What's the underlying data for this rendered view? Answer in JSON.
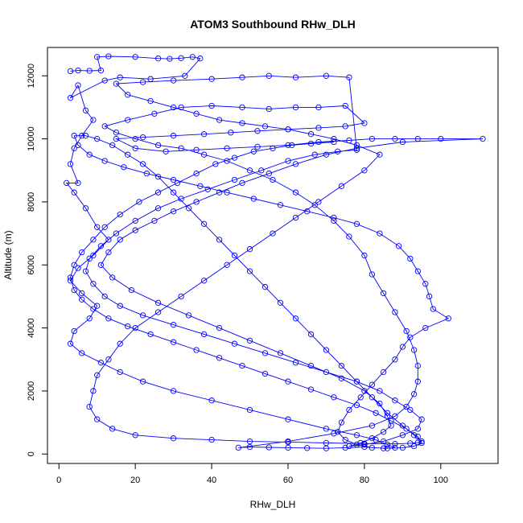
{
  "chart_data": {
    "type": "line",
    "title": "ATOM3 Southbound RHw_DLH",
    "xlabel": "RHw_DLH",
    "ylabel": "Altitude (m)",
    "xlim": [
      -3,
      115
    ],
    "ylim": [
      -300,
      12900
    ],
    "xticks": [
      0,
      20,
      40,
      60,
      80,
      100
    ],
    "yticks": [
      0,
      2000,
      4000,
      6000,
      8000,
      10000,
      12000
    ],
    "grid": false,
    "legend": "none",
    "series": [
      {
        "color": "#0000ff",
        "marker": "open-circle",
        "points": [
          [
            3,
            12150
          ],
          [
            5,
            12170
          ],
          [
            8,
            12160
          ],
          [
            11,
            12170
          ],
          [
            10,
            12600
          ],
          [
            13,
            12620
          ],
          [
            20,
            12600
          ],
          [
            26,
            12550
          ],
          [
            29,
            12540
          ],
          [
            32,
            12560
          ],
          [
            35,
            12600
          ],
          [
            37,
            12550
          ],
          [
            33,
            12000
          ],
          [
            24,
            11900
          ],
          [
            16,
            11950
          ],
          [
            12,
            11850
          ],
          [
            3,
            11300
          ],
          [
            5,
            11700
          ],
          [
            7,
            10900
          ],
          [
            9,
            10600
          ],
          [
            6,
            10100
          ],
          [
            4,
            9700
          ],
          [
            3,
            9200
          ],
          [
            5,
            8600
          ],
          [
            2,
            8600
          ],
          [
            4,
            8300
          ],
          [
            7,
            7800
          ],
          [
            10,
            7200
          ],
          [
            13,
            6800
          ],
          [
            9,
            6300
          ],
          [
            5,
            5900
          ],
          [
            3,
            5500
          ],
          [
            6,
            5100
          ],
          [
            10,
            4700
          ],
          [
            8,
            4300
          ],
          [
            4,
            3900
          ],
          [
            3,
            3500
          ],
          [
            6,
            3200
          ],
          [
            11,
            2900
          ],
          [
            16,
            2600
          ],
          [
            22,
            2300
          ],
          [
            30,
            2000
          ],
          [
            40,
            1700
          ],
          [
            50,
            1400
          ],
          [
            60,
            1100
          ],
          [
            70,
            800
          ],
          [
            78,
            600
          ],
          [
            83,
            450
          ],
          [
            86,
            300
          ],
          [
            88,
            200
          ],
          [
            85,
            180
          ],
          [
            80,
            220
          ],
          [
            75,
            200
          ],
          [
            70,
            180
          ],
          [
            65,
            190
          ],
          [
            60,
            200
          ],
          [
            55,
            210
          ],
          [
            50,
            220
          ],
          [
            47,
            200
          ],
          [
            60,
            400
          ],
          [
            72,
            650
          ],
          [
            82,
            900
          ],
          [
            88,
            1200
          ],
          [
            91,
            1500
          ],
          [
            93,
            1900
          ],
          [
            94,
            2300
          ],
          [
            94,
            2800
          ],
          [
            93,
            3300
          ],
          [
            91,
            3900
          ],
          [
            88,
            4500
          ],
          [
            85,
            5100
          ],
          [
            82,
            5700
          ],
          [
            80,
            6300
          ],
          [
            76,
            6900
          ],
          [
            72,
            7400
          ],
          [
            67,
            7900
          ],
          [
            62,
            8300
          ],
          [
            56,
            8700
          ],
          [
            50,
            9000
          ],
          [
            44,
            9300
          ],
          [
            38,
            9500
          ],
          [
            32,
            9700
          ],
          [
            26,
            9800
          ],
          [
            20,
            10000
          ],
          [
            15,
            10200
          ],
          [
            12,
            10400
          ],
          [
            18,
            10600
          ],
          [
            25,
            10800
          ],
          [
            32,
            11000
          ],
          [
            40,
            11050
          ],
          [
            48,
            11000
          ],
          [
            55,
            10950
          ],
          [
            62,
            11000
          ],
          [
            68,
            11000
          ],
          [
            75,
            11050
          ],
          [
            80,
            10500
          ],
          [
            75,
            10400
          ],
          [
            68,
            10350
          ],
          [
            60,
            10300
          ],
          [
            52,
            10250
          ],
          [
            45,
            10200
          ],
          [
            38,
            10150
          ],
          [
            30,
            10100
          ],
          [
            22,
            10050
          ],
          [
            15,
            10000
          ],
          [
            20,
            9700
          ],
          [
            28,
            9600
          ],
          [
            36,
            9650
          ],
          [
            44,
            9700
          ],
          [
            52,
            9750
          ],
          [
            60,
            9800
          ],
          [
            68,
            9900
          ],
          [
            76,
            9950
          ],
          [
            82,
            10000
          ],
          [
            88,
            10000
          ],
          [
            94,
            10000
          ],
          [
            100,
            10000
          ],
          [
            111,
            10000
          ],
          [
            90,
            9900
          ],
          [
            78,
            9700
          ],
          [
            70,
            9500
          ],
          [
            62,
            9200
          ],
          [
            55,
            8900
          ],
          [
            48,
            8600
          ],
          [
            42,
            8300
          ],
          [
            36,
            8000
          ],
          [
            30,
            7700
          ],
          [
            25,
            7400
          ],
          [
            20,
            7100
          ],
          [
            16,
            6800
          ],
          [
            13,
            6400
          ],
          [
            11,
            6000
          ],
          [
            14,
            5600
          ],
          [
            19,
            5200
          ],
          [
            26,
            4800
          ],
          [
            34,
            4400
          ],
          [
            42,
            4000
          ],
          [
            50,
            3600
          ],
          [
            58,
            3200
          ],
          [
            66,
            2800
          ],
          [
            74,
            2400
          ],
          [
            80,
            2000
          ],
          [
            84,
            1600
          ],
          [
            86,
            1200
          ],
          [
            87,
            900
          ],
          [
            85,
            700
          ],
          [
            82,
            500
          ],
          [
            79,
            350
          ],
          [
            76,
            250
          ],
          [
            80,
            300
          ],
          [
            85,
            400
          ],
          [
            90,
            600
          ],
          [
            94,
            800
          ],
          [
            95,
            1100
          ],
          [
            92,
            1400
          ],
          [
            88,
            1700
          ],
          [
            84,
            2000
          ],
          [
            78,
            2300
          ],
          [
            70,
            2600
          ],
          [
            62,
            2900
          ],
          [
            54,
            3200
          ],
          [
            46,
            3500
          ],
          [
            38,
            3800
          ],
          [
            30,
            4100
          ],
          [
            22,
            4400
          ],
          [
            16,
            4700
          ],
          [
            12,
            5000
          ],
          [
            9,
            5400
          ],
          [
            7,
            5800
          ],
          [
            8,
            6200
          ],
          [
            11,
            6600
          ],
          [
            15,
            7000
          ],
          [
            20,
            7400
          ],
          [
            26,
            7800
          ],
          [
            32,
            8100
          ],
          [
            39,
            8400
          ],
          [
            46,
            8700
          ],
          [
            53,
            9000
          ],
          [
            60,
            9300
          ],
          [
            67,
            9500
          ],
          [
            73,
            9600
          ],
          [
            78,
            9650
          ],
          [
            76,
            11950
          ],
          [
            70,
            12000
          ],
          [
            62,
            11950
          ],
          [
            55,
            12000
          ],
          [
            48,
            11950
          ],
          [
            40,
            11900
          ],
          [
            30,
            11850
          ],
          [
            22,
            11800
          ],
          [
            15,
            11750
          ],
          [
            18,
            11400
          ],
          [
            24,
            11200
          ],
          [
            30,
            11000
          ],
          [
            36,
            10800
          ],
          [
            42,
            10600
          ],
          [
            48,
            10500
          ],
          [
            54,
            10400
          ],
          [
            60,
            10300
          ],
          [
            66,
            10150
          ],
          [
            72,
            10000
          ],
          [
            78,
            9800
          ],
          [
            84,
            9500
          ],
          [
            80,
            9000
          ],
          [
            74,
            8500
          ],
          [
            68,
            8000
          ],
          [
            62,
            7500
          ],
          [
            56,
            7000
          ],
          [
            50,
            6500
          ],
          [
            44,
            6000
          ],
          [
            38,
            5500
          ],
          [
            32,
            5000
          ],
          [
            26,
            4500
          ],
          [
            20,
            4000
          ],
          [
            16,
            3500
          ],
          [
            13,
            3000
          ],
          [
            10,
            2500
          ],
          [
            9,
            2000
          ],
          [
            8,
            1500
          ],
          [
            10,
            1100
          ],
          [
            14,
            800
          ],
          [
            20,
            600
          ],
          [
            30,
            500
          ],
          [
            40,
            450
          ],
          [
            50,
            400
          ],
          [
            60,
            380
          ],
          [
            70,
            350
          ],
          [
            80,
            330
          ],
          [
            88,
            320
          ],
          [
            92,
            340
          ],
          [
            94,
            360
          ],
          [
            95,
            400
          ],
          [
            93,
            600
          ],
          [
            90,
            900
          ],
          [
            86,
            1300
          ],
          [
            82,
            1800
          ],
          [
            78,
            2300
          ],
          [
            74,
            2800
          ],
          [
            70,
            3300
          ],
          [
            66,
            3800
          ],
          [
            62,
            4300
          ],
          [
            58,
            4800
          ],
          [
            54,
            5300
          ],
          [
            50,
            5800
          ],
          [
            46,
            6300
          ],
          [
            42,
            6800
          ],
          [
            38,
            7300
          ],
          [
            34,
            7800
          ],
          [
            30,
            8300
          ],
          [
            26,
            8800
          ],
          [
            22,
            9200
          ],
          [
            18,
            9500
          ],
          [
            14,
            9800
          ],
          [
            10,
            10000
          ],
          [
            7,
            10100
          ],
          [
            4,
            10100
          ],
          [
            5,
            9800
          ],
          [
            8,
            9500
          ],
          [
            12,
            9300
          ],
          [
            17,
            9100
          ],
          [
            23,
            8900
          ],
          [
            30,
            8700
          ],
          [
            37,
            8500
          ],
          [
            44,
            8300
          ],
          [
            51,
            8100
          ],
          [
            58,
            7900
          ],
          [
            65,
            7700
          ],
          [
            72,
            7500
          ],
          [
            78,
            7300
          ],
          [
            84,
            7000
          ],
          [
            89,
            6600
          ],
          [
            92,
            6200
          ],
          [
            94,
            5800
          ],
          [
            96,
            5400
          ],
          [
            97,
            5000
          ],
          [
            98,
            4600
          ],
          [
            102,
            4300
          ],
          [
            96,
            4000
          ],
          [
            92,
            3700
          ],
          [
            90,
            3400
          ],
          [
            88,
            3000
          ],
          [
            85,
            2600
          ],
          [
            82,
            2200
          ],
          [
            79,
            1800
          ],
          [
            76,
            1400
          ],
          [
            74,
            1000
          ],
          [
            73,
            700
          ],
          [
            75,
            450
          ],
          [
            78,
            300
          ],
          [
            82,
            200
          ],
          [
            86,
            180
          ],
          [
            90,
            200
          ],
          [
            93,
            250
          ],
          [
            95,
            350
          ],
          [
            94,
            550
          ],
          [
            91,
            800
          ],
          [
            87,
            1050
          ],
          [
            83,
            1300
          ],
          [
            78,
            1550
          ],
          [
            72,
            1800
          ],
          [
            66,
            2050
          ],
          [
            60,
            2300
          ],
          [
            54,
            2550
          ],
          [
            48,
            2800
          ],
          [
            42,
            3050
          ],
          [
            36,
            3300
          ],
          [
            30,
            3550
          ],
          [
            24,
            3800
          ],
          [
            18,
            4050
          ],
          [
            13,
            4300
          ],
          [
            9,
            4600
          ],
          [
            6,
            4900
          ],
          [
            4,
            5200
          ],
          [
            3,
            5600
          ],
          [
            4,
            6000
          ],
          [
            6,
            6400
          ],
          [
            9,
            6800
          ],
          [
            12,
            7200
          ],
          [
            16,
            7600
          ],
          [
            21,
            8000
          ],
          [
            26,
            8300
          ],
          [
            31,
            8600
          ],
          [
            36,
            8900
          ],
          [
            41,
            9200
          ],
          [
            46,
            9400
          ],
          [
            51,
            9600
          ],
          [
            56,
            9700
          ],
          [
            61,
            9800
          ],
          [
            66,
            9850
          ],
          [
            72,
            9900
          ]
        ]
      }
    ]
  }
}
